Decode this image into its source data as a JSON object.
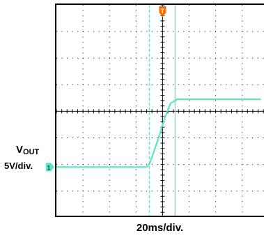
{
  "channel": {
    "name_main": "V",
    "name_sub": "OUT",
    "scale": "5V/div.",
    "marker": "1"
  },
  "timebase": {
    "label": "20ms/div."
  },
  "trigger": {
    "marker": "T"
  },
  "colors": {
    "trace": "#5fe3c8",
    "trigger": "#ff6a00",
    "grid": "#000000",
    "frame": "#000000"
  },
  "chart_data": {
    "type": "line",
    "title": "",
    "xlabel": "20ms/div.",
    "ylabel": "VOUT 5V/div.",
    "x_units": "div",
    "y_units": "div",
    "xlim": [
      0,
      7.7
    ],
    "ylim": [
      -4,
      4
    ],
    "grid": true,
    "cursors_x": [
      3.5,
      4.47
    ],
    "trigger_x": 4.0,
    "series": [
      {
        "name": "VOUT",
        "x": [
          0,
          3.4,
          3.52,
          3.85,
          4.1,
          4.3,
          4.55,
          7.7
        ],
        "y": [
          -2.1,
          -2.1,
          -1.95,
          -1.0,
          -0.2,
          0.3,
          0.45,
          0.45
        ]
      }
    ]
  }
}
